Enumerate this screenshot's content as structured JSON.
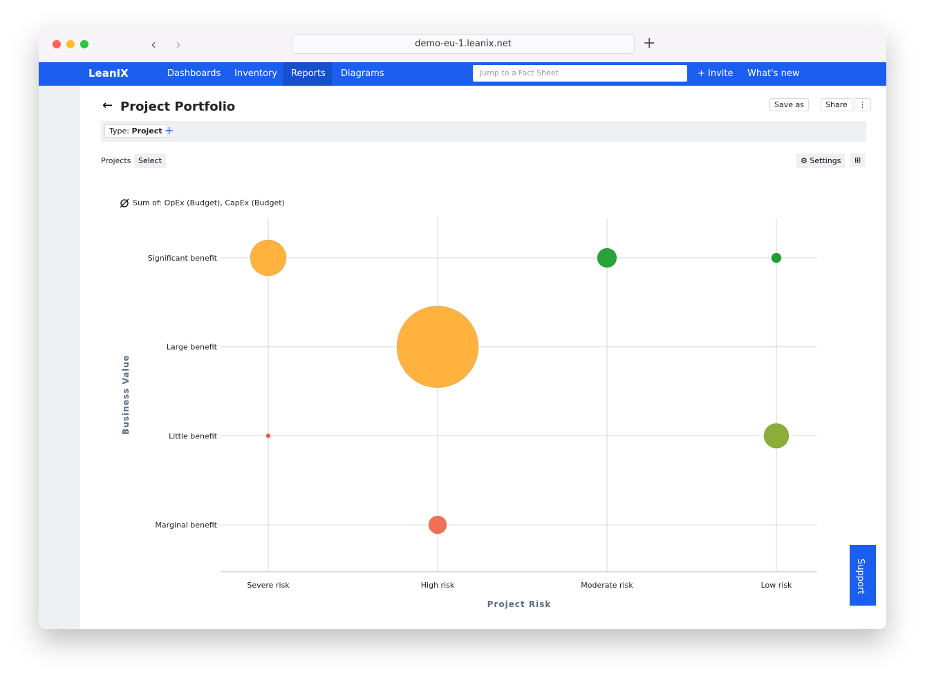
{
  "browser": {
    "url": "demo-eu-1.leanix.net"
  },
  "nav": {
    "brand": "LeanIX",
    "items": [
      "Dashboards",
      "Inventory",
      "Reports",
      "Diagrams"
    ],
    "search_placeholder": "Jump to a Fact Sheet",
    "invite": "+ Invite",
    "whats_new": "What's new"
  },
  "header": {
    "title": "Project Portfolio",
    "save_as": "Save as",
    "share": "Share"
  },
  "filter": {
    "key": "Type:",
    "value": "Project",
    "add": "+"
  },
  "toolbar": {
    "label": "Projects",
    "select": "Select",
    "settings": "Settings"
  },
  "chart_data": {
    "type": "bubble",
    "size_legend": "Sum of: OpEx (Budget), CapEx (Budget)",
    "x_label": "Project Risk",
    "y_label": "Business Value",
    "x_categories": [
      "Severe risk",
      "High risk",
      "Moderate risk",
      "Low risk"
    ],
    "y_categories": [
      "Significant benefit",
      "Large benefit",
      "Little benefit",
      "Marginal benefit"
    ],
    "grid": true,
    "points": [
      {
        "x": "Severe risk",
        "y": "Significant benefit",
        "size": 676,
        "color": "#ffb33e"
      },
      {
        "x": "High risk",
        "y": "Large benefit",
        "size": 3481,
        "color": "#ffb33e"
      },
      {
        "x": "Moderate risk",
        "y": "Significant benefit",
        "size": 196,
        "color": "#28a23a"
      },
      {
        "x": "Low risk",
        "y": "Significant benefit",
        "size": 49,
        "color": "#1c9e33"
      },
      {
        "x": "Severe risk",
        "y": "Little benefit",
        "size": 9,
        "color": "#ee5a45"
      },
      {
        "x": "Low risk",
        "y": "Little benefit",
        "size": 324,
        "color": "#8aae37"
      },
      {
        "x": "High risk",
        "y": "Marginal benefit",
        "size": 169,
        "color": "#f07058"
      }
    ]
  },
  "support": "Support"
}
